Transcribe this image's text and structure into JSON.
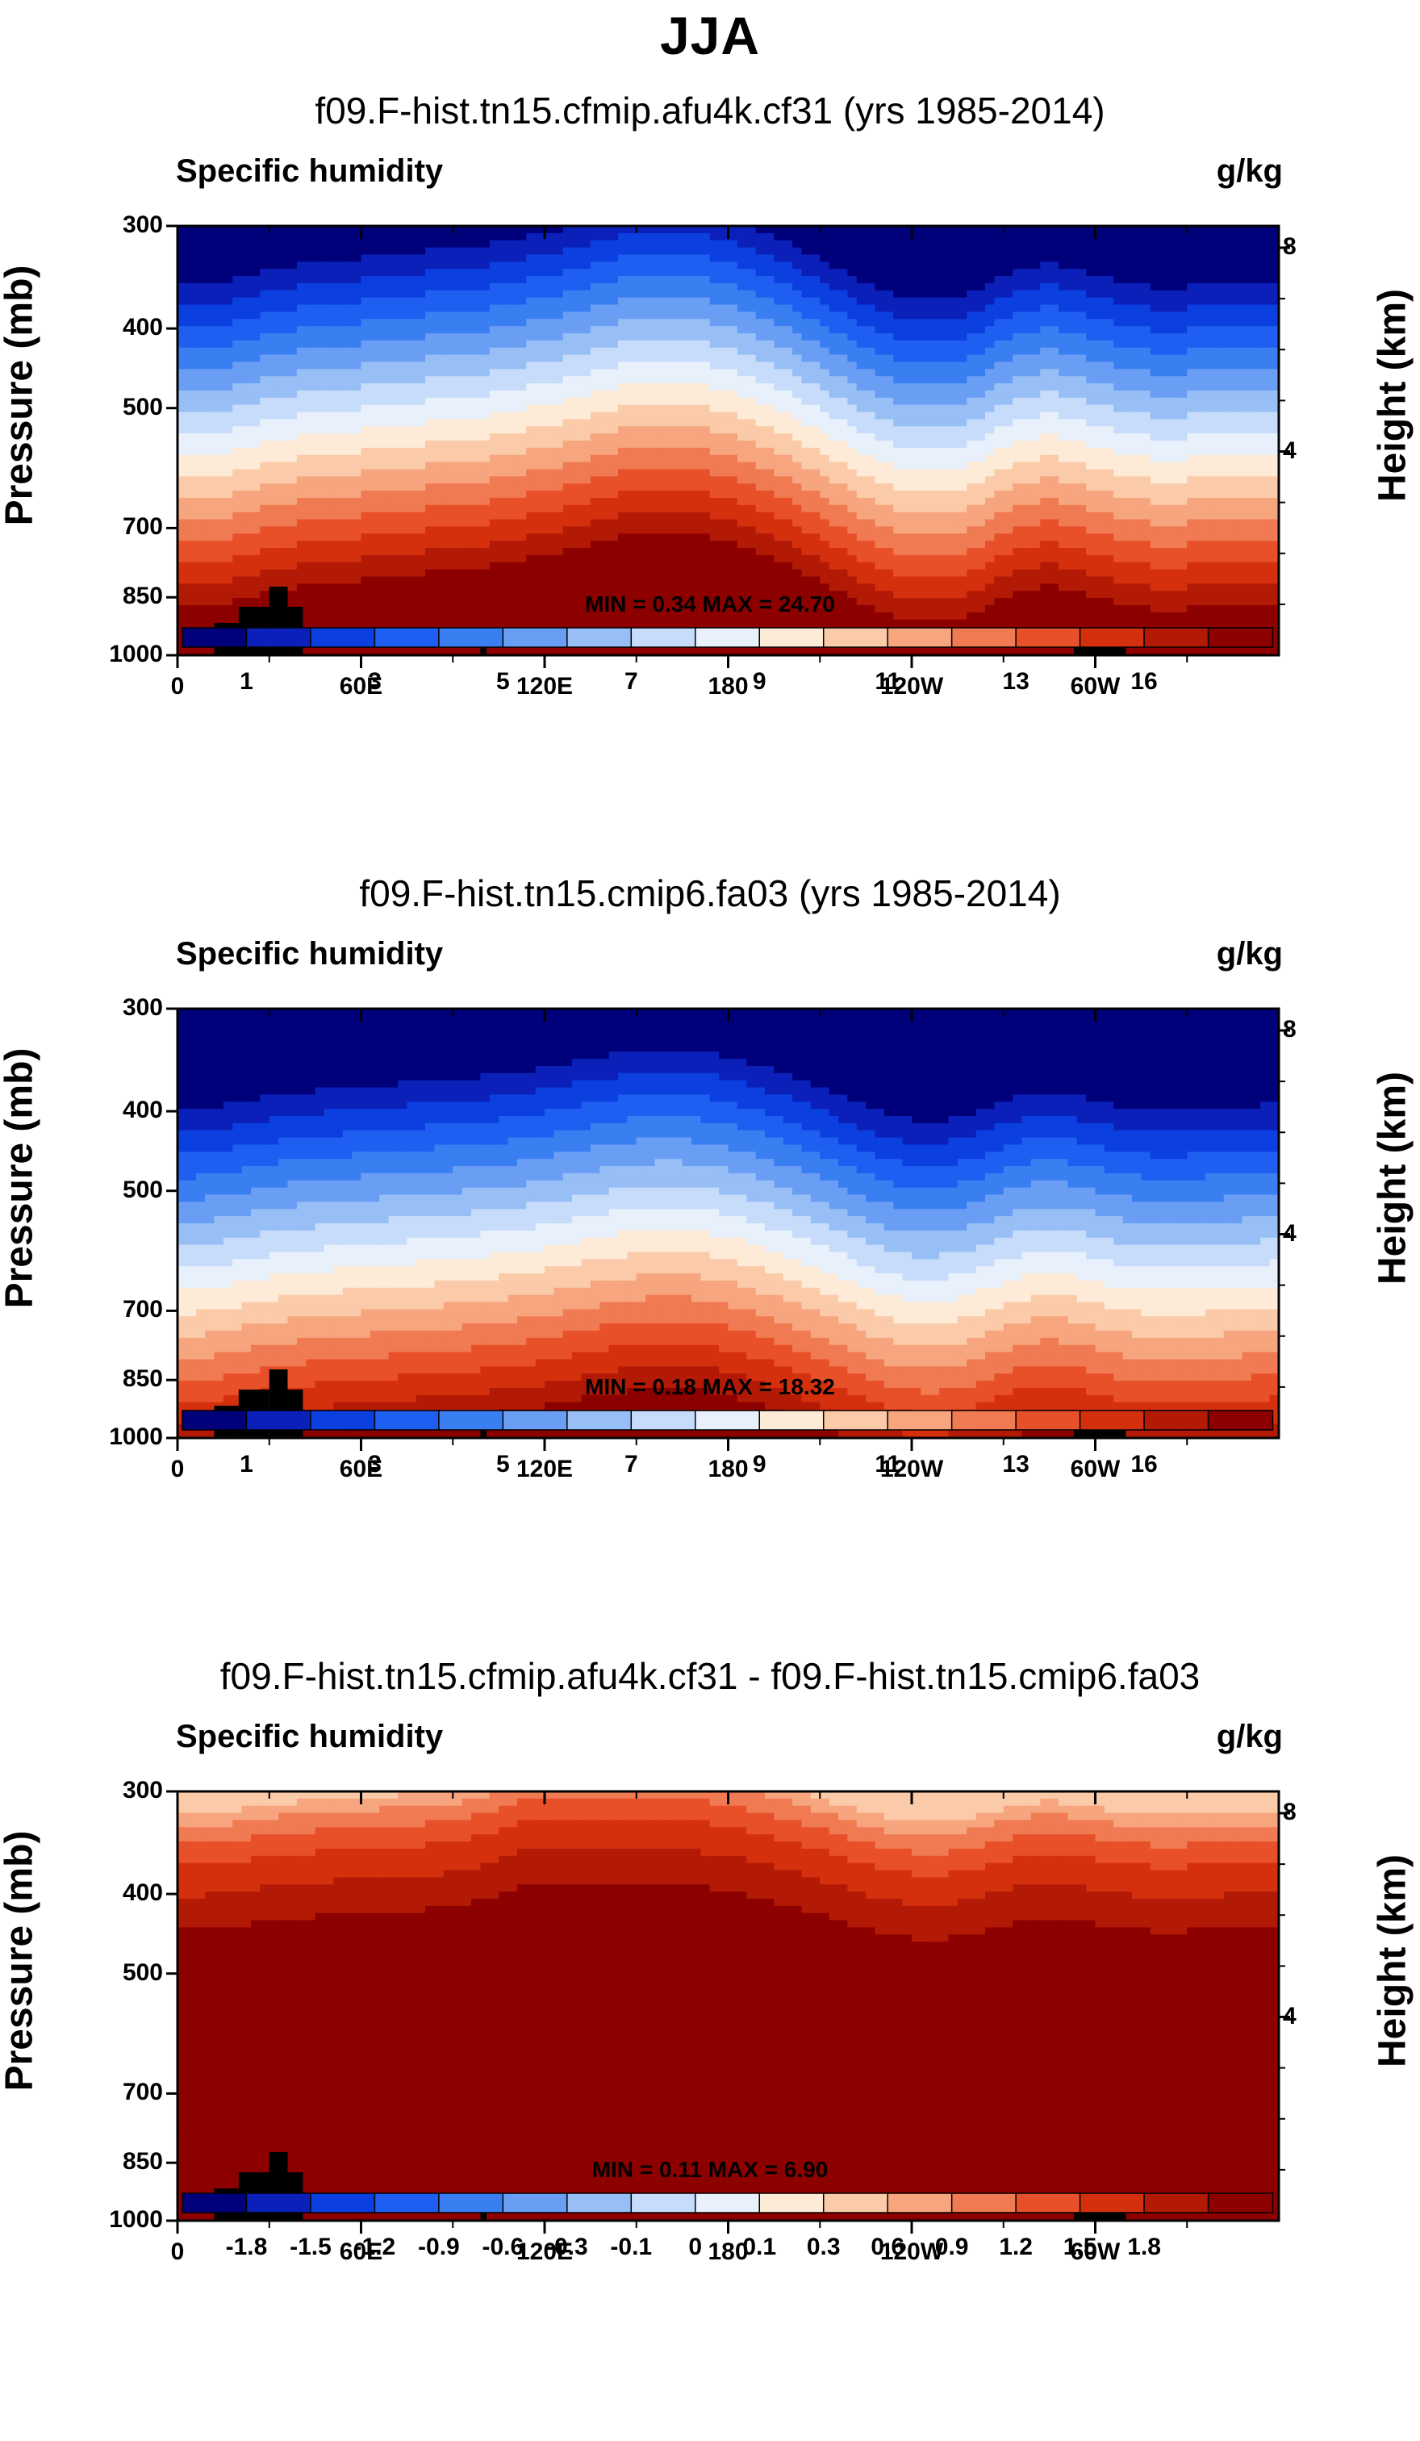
{
  "figure_title": "JJA",
  "chart_data": [
    {
      "type": "heatmap",
      "title": "f09.F-hist.tn15.cfmip.afu4k.cf31 (yrs 1985-2014)",
      "field": "Specific humidity",
      "units": "g/kg",
      "ylabel": "Pressure (mb)",
      "ylabel_right": "Height (km)",
      "yticks": [
        "300",
        "400",
        "500",
        "700",
        "850",
        "1000"
      ],
      "height_ticks": [
        "8",
        "4"
      ],
      "xticks": [
        "0",
        "60E",
        "120E",
        "180",
        "120W",
        "60W"
      ],
      "min_max": "MIN =   0.34   MAX =  24.70",
      "colorbar_labels": [
        "1",
        "3",
        "5",
        "7",
        "9",
        "11",
        "13",
        "16"
      ],
      "min": 0.34,
      "max": 24.7
    },
    {
      "type": "heatmap",
      "title": "f09.F-hist.tn15.cmip6.fa03 (yrs 1985-2014)",
      "field": "Specific humidity",
      "units": "g/kg",
      "ylabel": "Pressure (mb)",
      "ylabel_right": "Height (km)",
      "yticks": [
        "300",
        "400",
        "500",
        "700",
        "850",
        "1000"
      ],
      "height_ticks": [
        "8",
        "4"
      ],
      "xticks": [
        "0",
        "60E",
        "120E",
        "180",
        "120W",
        "60W"
      ],
      "min_max": "MIN =   0.18   MAX =  18.32",
      "colorbar_labels": [
        "1",
        "3",
        "5",
        "7",
        "9",
        "11",
        "13",
        "16"
      ],
      "min": 0.18,
      "max": 18.32
    },
    {
      "type": "heatmap",
      "title": "f09.F-hist.tn15.cfmip.afu4k.cf31 - f09.F-hist.tn15.cmip6.fa03",
      "field": "Specific humidity",
      "units": "g/kg",
      "ylabel": "Pressure (mb)",
      "ylabel_right": "Height (km)",
      "yticks": [
        "300",
        "400",
        "500",
        "700",
        "850",
        "1000"
      ],
      "height_ticks": [
        "8",
        "4"
      ],
      "xticks": [
        "0",
        "60E",
        "120E",
        "180",
        "120W",
        "60W"
      ],
      "min_max": "MIN =   0.11   MAX =   6.90",
      "colorbar_labels": [
        "-1.8",
        "-1.5",
        "-1.2",
        "-0.9",
        "-0.6",
        "-0.3",
        "-0.1",
        "0",
        "0.1",
        "0.3",
        "0.6",
        "0.9",
        "1.2",
        "1.5",
        "1.8"
      ],
      "min": 0.11,
      "max": 6.9
    }
  ],
  "colormap": [
    "#00007a",
    "#0a20b8",
    "#0c3fe0",
    "#1e5ef0",
    "#3a7ff2",
    "#6a9ef4",
    "#97bff6",
    "#c6dcfa",
    "#e8f1fb",
    "#fdebd8",
    "#fbcaa8",
    "#f6a57e",
    "#f07a52",
    "#e8502a",
    "#d5300e",
    "#b31a06",
    "#8c0000"
  ]
}
